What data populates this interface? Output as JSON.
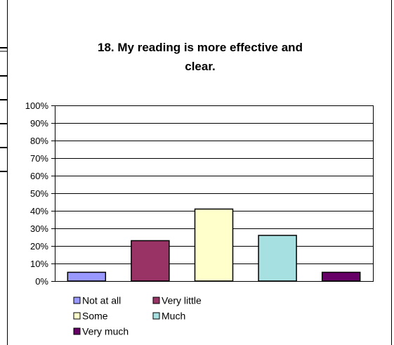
{
  "chart_data": {
    "type": "bar",
    "title_line1": "18. My reading is more effective and",
    "title_line2": "clear.",
    "categories": [
      "Not at all",
      "Very little",
      "Some",
      "Much",
      "Very much"
    ],
    "values": [
      5,
      23,
      41,
      26,
      5
    ],
    "colors": [
      "#9999ff",
      "#993366",
      "#ffffcc",
      "#a6e0e0",
      "#660066"
    ],
    "ylim": [
      0,
      100
    ],
    "yticks": [
      "0%",
      "10%",
      "20%",
      "30%",
      "40%",
      "50%",
      "60%",
      "70%",
      "80%",
      "90%",
      "100%"
    ],
    "grid": true,
    "legend_position": "bottom"
  }
}
